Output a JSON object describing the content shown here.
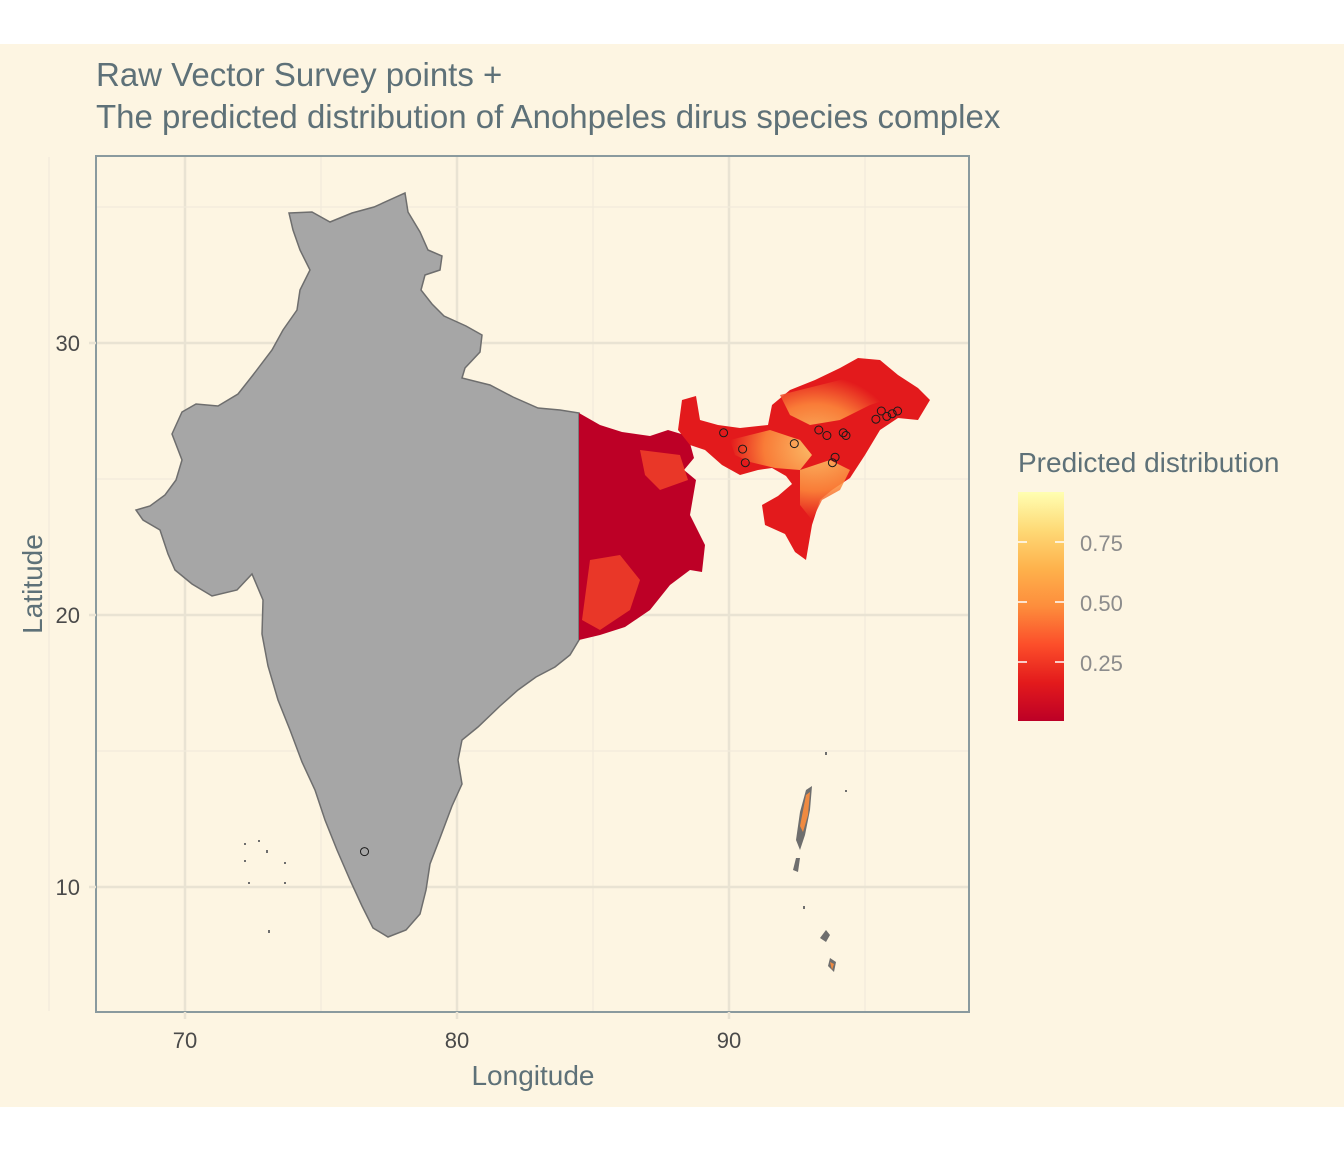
{
  "title": {
    "line1": "Raw Vector Survey points +",
    "line2": "The predicted distribution of Anohpeles dirus species complex"
  },
  "chart_data": {
    "type": "map",
    "xlabel": "Longitude",
    "ylabel": "Latitude",
    "x_ticks": [
      "70",
      "80",
      "90"
    ],
    "y_ticks": [
      "30",
      "20",
      "10"
    ],
    "legend": {
      "title": "Predicted distribution",
      "labels": [
        "0.75",
        "0.50",
        "0.25"
      ],
      "position": "right",
      "colors": [
        "#bd0026",
        "#e31a1c",
        "#fc4e2a",
        "#fd8d3c",
        "#feb24c",
        "#fed976",
        "#ffffb2"
      ]
    },
    "colors": {
      "land": "#a6a6a6",
      "background": "#fdf5e2",
      "prediction_low": "#bd0026",
      "prediction_high": "#ffffb2"
    },
    "survey_points": [
      {
        "lon": 76.6,
        "lat": 11.3
      },
      {
        "lon": 89.8,
        "lat": 26.7
      },
      {
        "lon": 90.5,
        "lat": 26.1
      },
      {
        "lon": 90.6,
        "lat": 25.6
      },
      {
        "lon": 92.4,
        "lat": 26.3
      },
      {
        "lon": 93.3,
        "lat": 26.8
      },
      {
        "lon": 93.6,
        "lat": 26.6
      },
      {
        "lon": 93.8,
        "lat": 25.6
      },
      {
        "lon": 93.9,
        "lat": 25.8
      },
      {
        "lon": 94.2,
        "lat": 26.7
      },
      {
        "lon": 94.3,
        "lat": 26.6
      },
      {
        "lon": 95.4,
        "lat": 27.2
      },
      {
        "lon": 95.6,
        "lat": 27.5
      },
      {
        "lon": 95.8,
        "lat": 27.3
      },
      {
        "lon": 96.0,
        "lat": 27.4
      },
      {
        "lon": 96.2,
        "lat": 27.5
      }
    ]
  }
}
